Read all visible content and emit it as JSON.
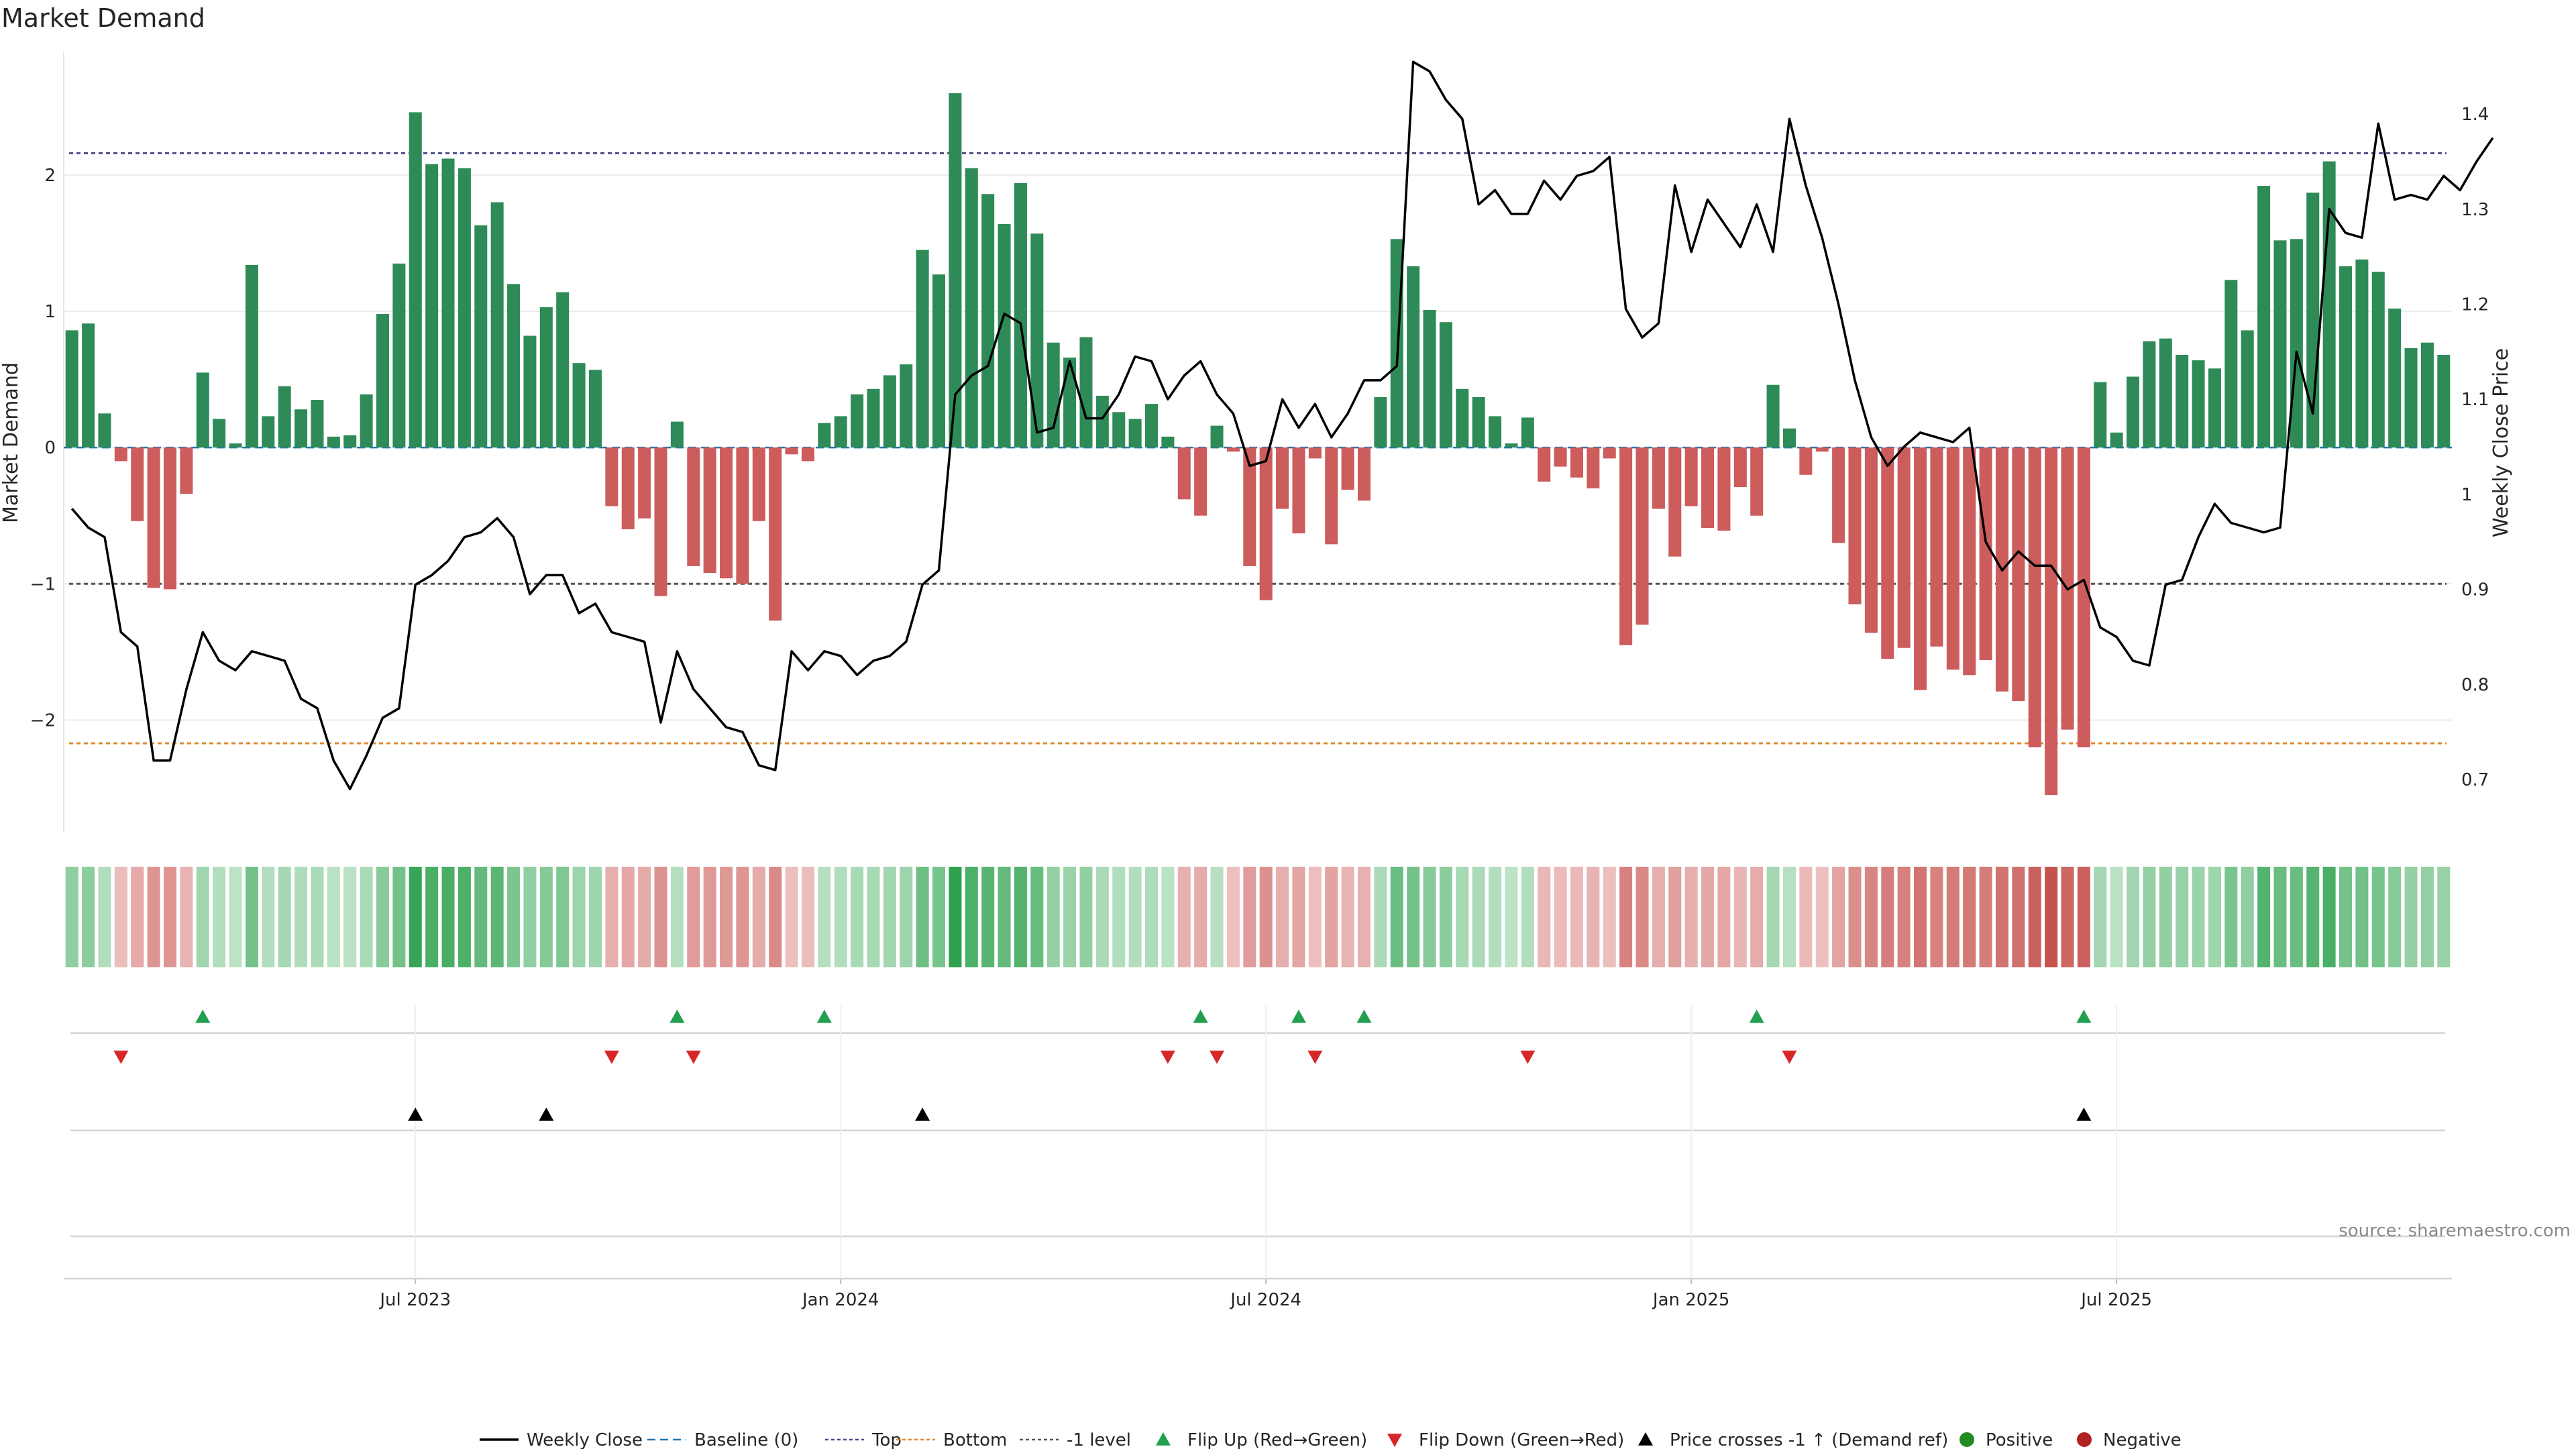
{
  "chart_data": {
    "type": "bar",
    "title": "Market Demand",
    "ylabel": "Market Demand",
    "y2label": "Weekly Close Price",
    "ylim": [
      -2.82,
      2.9
    ],
    "y2lim": [
      0.645,
      1.465
    ],
    "yticks": [
      "2",
      "1",
      "0",
      "−1",
      "−2"
    ],
    "y2ticks": [
      "1.4",
      "1.3",
      "1.2",
      "1.1",
      "1",
      "0.9",
      "0.8",
      "0.7"
    ],
    "xticks": [
      "Jul 2023",
      "Jan 2024",
      "Jul 2024",
      "Jan 2025",
      "Jul 2025"
    ],
    "xtick_weeks": [
      21,
      47,
      73,
      99,
      125
    ],
    "reference_lines": {
      "top": 2.16,
      "bottom": -2.17,
      "minus_one": -1
    },
    "demand": [
      0.86,
      0.91,
      0.25,
      -0.1,
      -0.54,
      -1.03,
      -1.04,
      -0.34,
      0.55,
      0.21,
      0.03,
      1.34,
      0.23,
      0.45,
      0.28,
      0.35,
      0.08,
      0.09,
      0.39,
      0.98,
      1.35,
      2.46,
      2.08,
      2.12,
      2.05,
      1.63,
      1.8,
      1.2,
      0.82,
      1.03,
      1.14,
      0.62,
      0.57,
      -0.43,
      -0.6,
      -0.52,
      -1.09,
      0.19,
      -0.87,
      -0.92,
      -0.96,
      -1.0,
      -0.54,
      -1.27,
      -0.05,
      -0.1,
      0.18,
      0.23,
      0.39,
      0.43,
      0.53,
      0.61,
      1.45,
      1.27,
      2.6,
      2.05,
      1.86,
      1.64,
      1.94,
      1.57,
      0.77,
      0.66,
      0.81,
      0.38,
      0.26,
      0.21,
      0.32,
      0.08,
      -0.38,
      -0.5,
      0.16,
      -0.03,
      -0.87,
      -1.12,
      -0.45,
      -0.63,
      -0.08,
      -0.71,
      -0.31,
      -0.39,
      0.37,
      1.53,
      1.33,
      1.01,
      0.92,
      0.43,
      0.37,
      0.23,
      0.03,
      0.22,
      -0.25,
      -0.14,
      -0.22,
      -0.3,
      -0.08,
      -1.45,
      -1.3,
      -0.45,
      -0.8,
      -0.43,
      -0.59,
      -0.61,
      -0.29,
      -0.5,
      0.46,
      0.14,
      -0.2,
      -0.03,
      -0.7,
      -1.15,
      -1.36,
      -1.55,
      -1.47,
      -1.78,
      -1.46,
      -1.63,
      -1.67,
      -1.56,
      -1.79,
      -1.86,
      -2.2,
      -2.55,
      -2.07,
      -2.2,
      0.48,
      0.11,
      0.52,
      0.78,
      0.8,
      0.68,
      0.64,
      0.58,
      1.23,
      0.86,
      1.92,
      1.52,
      1.53,
      1.87,
      2.1,
      1.33,
      1.38,
      1.29,
      1.02,
      0.73,
      0.77,
      0.68
    ],
    "price": [
      0.985,
      0.965,
      0.955,
      0.855,
      0.84,
      0.72,
      0.72,
      0.795,
      0.855,
      0.825,
      0.815,
      0.835,
      0.83,
      0.825,
      0.785,
      0.775,
      0.72,
      0.69,
      0.725,
      0.765,
      0.775,
      0.905,
      0.915,
      0.93,
      0.955,
      0.96,
      0.975,
      0.955,
      0.895,
      0.915,
      0.915,
      0.875,
      0.885,
      0.855,
      0.85,
      0.845,
      0.76,
      0.835,
      0.795,
      0.775,
      0.755,
      0.75,
      0.715,
      0.71,
      0.835,
      0.815,
      0.835,
      0.83,
      0.81,
      0.825,
      0.83,
      0.845,
      0.905,
      0.92,
      1.105,
      1.125,
      1.135,
      1.19,
      1.18,
      1.065,
      1.07,
      1.14,
      1.08,
      1.08,
      1.105,
      1.145,
      1.14,
      1.1,
      1.125,
      1.14,
      1.105,
      1.085,
      1.03,
      1.035,
      1.1,
      1.07,
      1.095,
      1.06,
      1.085,
      1.12,
      1.12,
      1.135,
      1.455,
      1.445,
      1.415,
      1.395,
      1.305,
      1.32,
      1.295,
      1.295,
      1.33,
      1.31,
      1.335,
      1.34,
      1.355,
      1.195,
      1.165,
      1.18,
      1.325,
      1.255,
      1.31,
      1.285,
      1.26,
      1.305,
      1.255,
      1.395,
      1.325,
      1.27,
      1.2,
      1.12,
      1.06,
      1.03,
      1.05,
      1.065,
      1.06,
      1.055,
      1.07,
      0.95,
      0.92,
      0.94,
      0.925,
      0.925,
      0.9,
      0.91,
      0.86,
      0.85,
      0.825,
      0.82,
      0.905,
      0.91,
      0.955,
      0.99,
      0.97,
      0.965,
      0.96,
      0.965,
      1.15,
      1.085,
      1.3,
      1.275,
      1.27,
      1.39,
      1.31,
      1.315,
      1.31,
      1.335,
      1.32,
      1.35,
      1.375
    ],
    "flip_up_weeks": [
      8,
      37,
      46,
      69,
      75,
      79,
      103,
      123
    ],
    "flip_down_weeks": [
      3,
      33,
      38,
      67,
      70,
      76,
      89,
      105
    ],
    "price_cross_weeks": [
      21,
      29,
      52,
      123
    ],
    "legend": [
      "Weekly Close",
      "Baseline (0)",
      "Top",
      "Bottom",
      "-1 level",
      "Flip Up (Red→Green)",
      "Flip Down (Green→Red)",
      "Price crosses -1 ↑ (Demand ref)",
      "Positive",
      "Negative"
    ],
    "source": "source: sharemaestro.com",
    "colors": {
      "positive": "#2e8b57",
      "negative": "#cd5c5c",
      "price": "#000000",
      "baseline": "#1f77b4",
      "top": "#4a4a8c",
      "bottom": "#e08a2e",
      "minus_one": "#555555",
      "flip_up": "#22a050",
      "flip_down": "#d62728",
      "cross": "#000000",
      "legend_positive": "#228b22",
      "legend_negative": "#b22222"
    }
  }
}
